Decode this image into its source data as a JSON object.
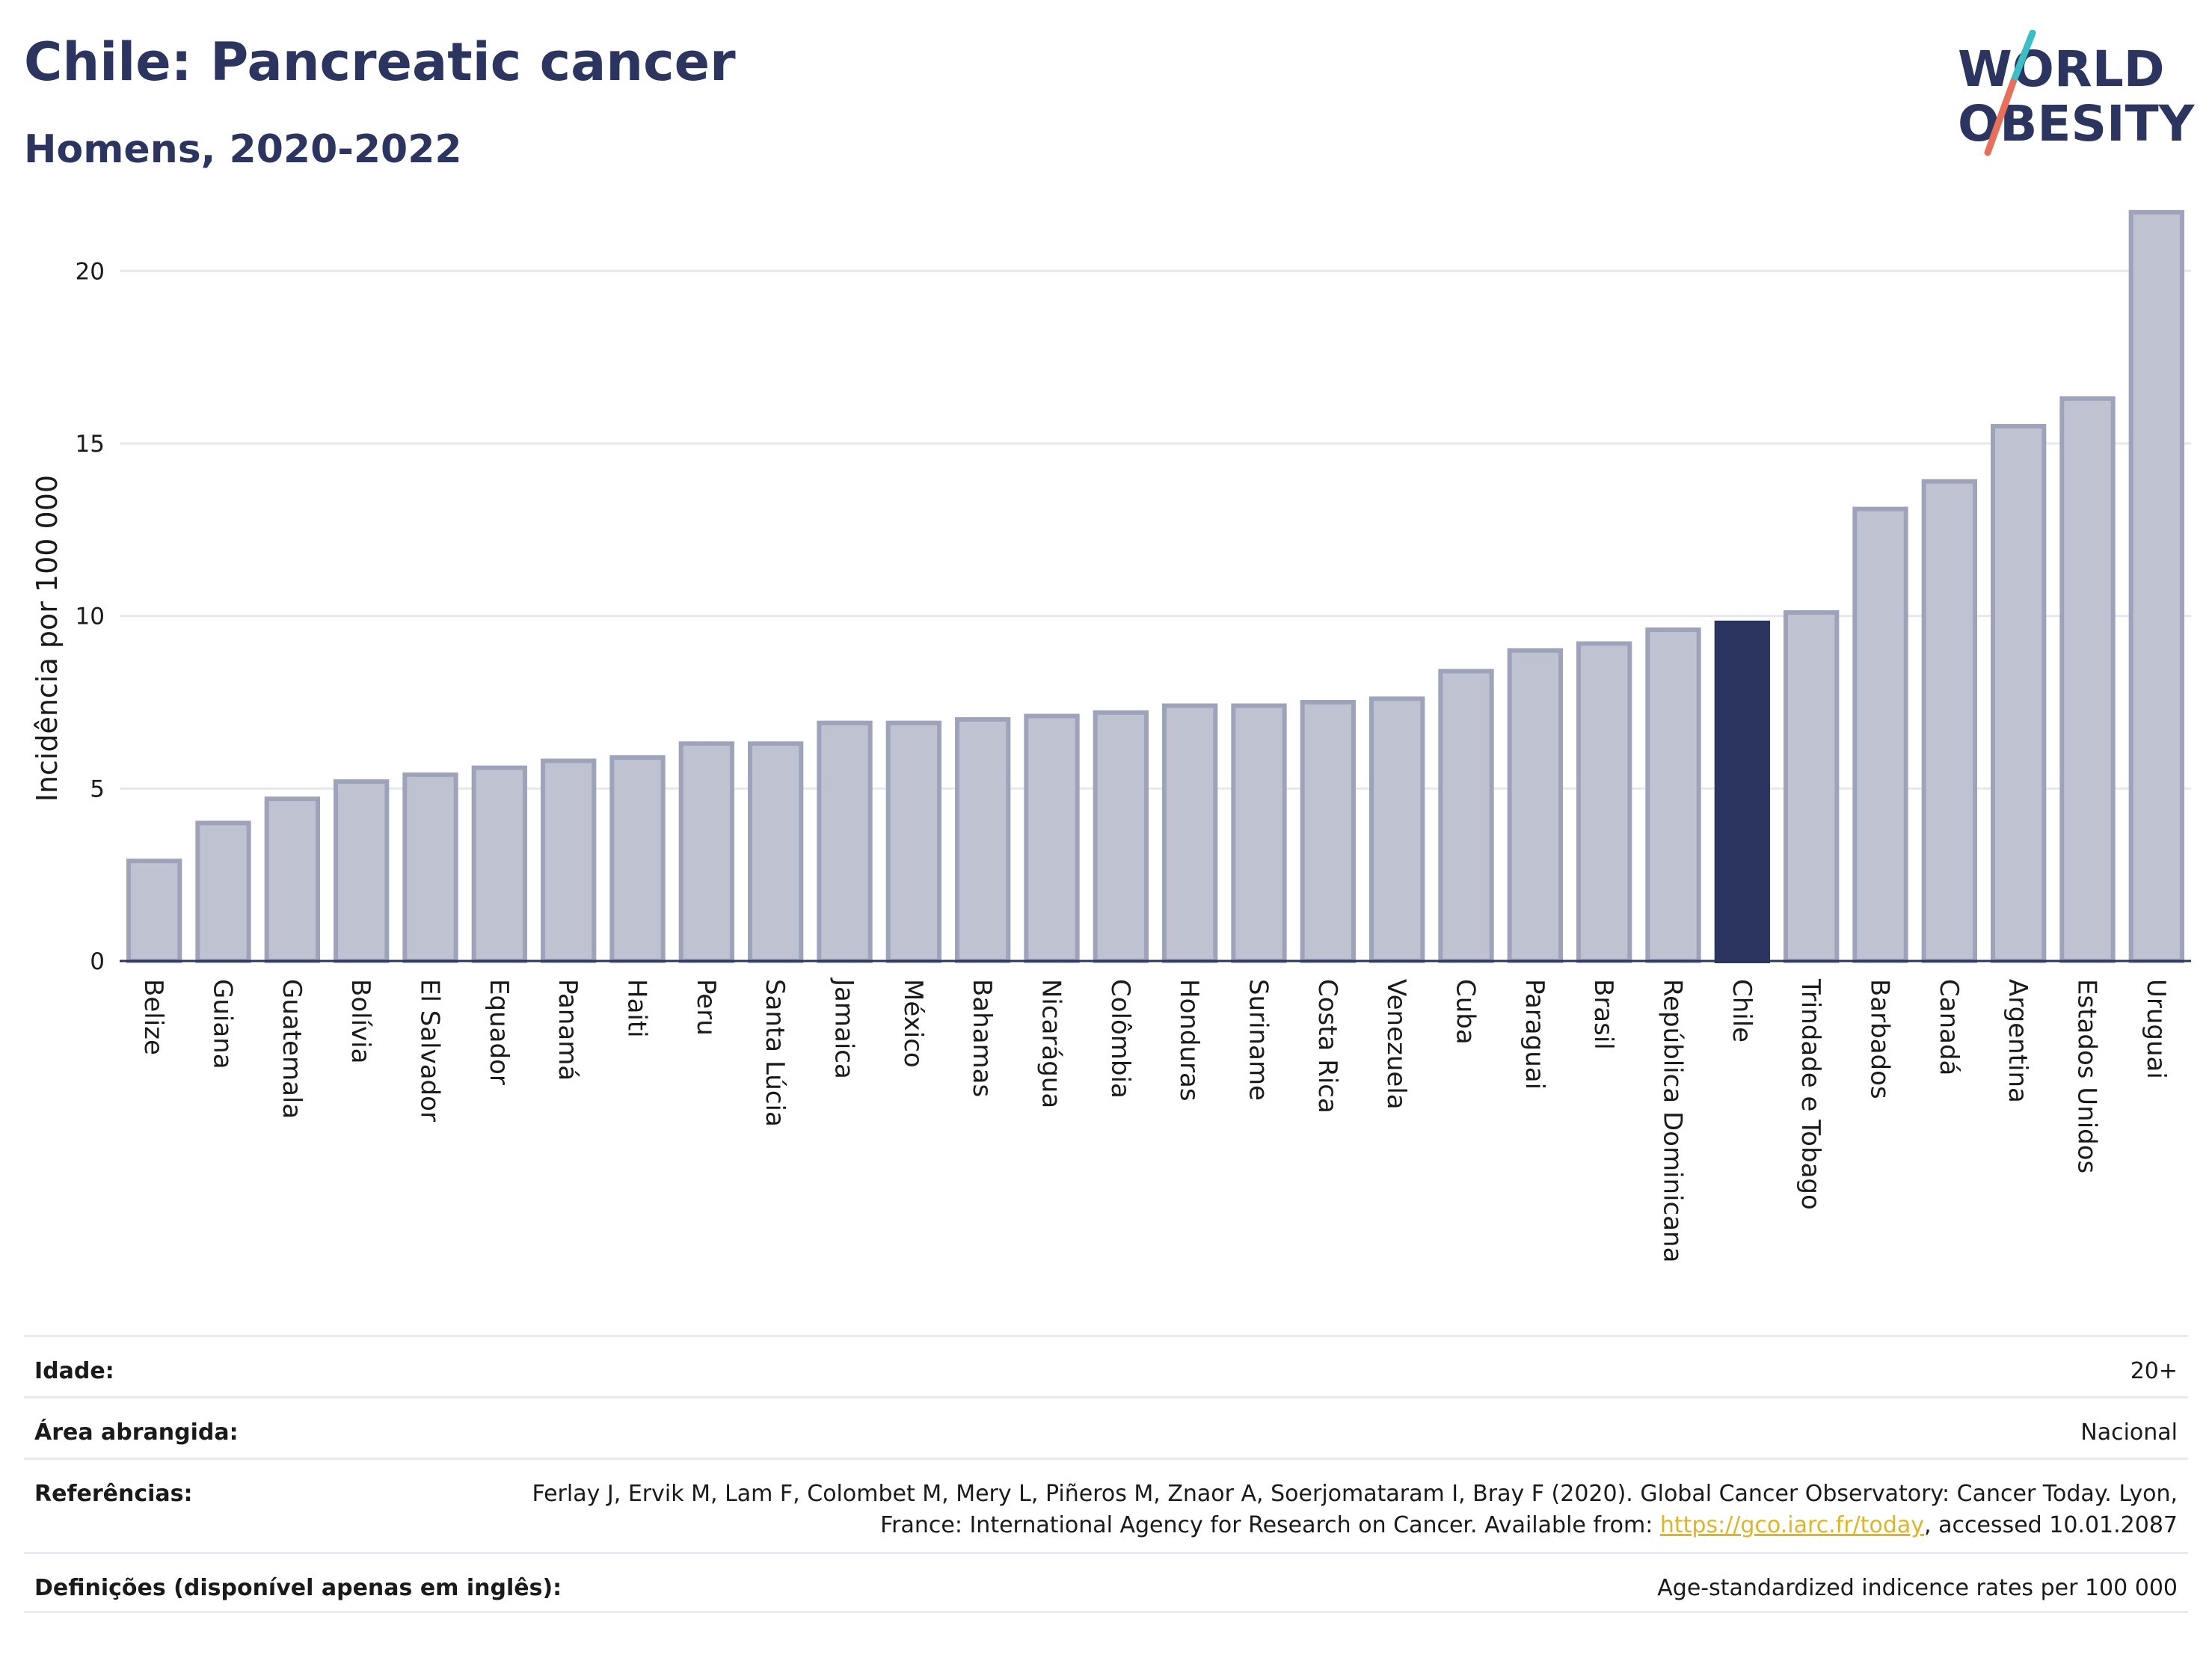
{
  "header": {
    "title": "Chile: Pancreatic cancer",
    "subtitle": "Homens, 2020-2022"
  },
  "logo": {
    "line1": "WORLD",
    "line2": "OBESITY",
    "colors": {
      "text": "#2b3560",
      "slash_top": "#3bbfc6",
      "slash_bottom": "#e8705a"
    }
  },
  "colors": {
    "bar": "#bfc3d1",
    "bar_border": "#9da3ba",
    "highlight": "#2b3560",
    "gridline": "#e6e8ec",
    "axis": "#2b3560"
  },
  "chart_data": {
    "type": "bar",
    "ylabel": "Incidência por 100 000",
    "ylim": [
      0,
      22
    ],
    "yticks": [
      0,
      5,
      10,
      15,
      20
    ],
    "grid": true,
    "highlight": "Chile",
    "categories": [
      "Belize",
      "Guiana",
      "Guatemala",
      "Bolívia",
      "El Salvador",
      "Equador",
      "Panamá",
      "Haiti",
      "Peru",
      "Santa Lúcia",
      "Jamaica",
      "México",
      "Bahamas",
      "Nicarágua",
      "Colômbia",
      "Honduras",
      "Suriname",
      "Costa Rica",
      "Venezuela",
      "Cuba",
      "Paraguai",
      "Brasil",
      "República Dominicana",
      "Chile",
      "Trindade e Tobago",
      "Barbados",
      "Canadá",
      "Argentina",
      "Estados Unidos",
      "Uruguai"
    ],
    "values": [
      2.9,
      4.0,
      4.7,
      5.2,
      5.4,
      5.6,
      5.8,
      5.9,
      6.3,
      6.3,
      6.9,
      6.9,
      7.0,
      7.1,
      7.2,
      7.4,
      7.4,
      7.5,
      7.6,
      8.4,
      9.0,
      9.2,
      9.6,
      9.8,
      10.1,
      13.1,
      13.9,
      15.5,
      16.3,
      21.7
    ]
  },
  "meta": {
    "age_label": "Idade:",
    "age_value": "20+",
    "area_label": "Área abrangida:",
    "area_value": "Nacional",
    "ref_label": "Referências:",
    "ref_text_1": "Ferlay J, Ervik M, Lam F, Colombet M, Mery L, Piñeros M, Znaor A, Soerjomataram I, Bray F (2020). Global Cancer Observatory: Cancer Today. Lyon, France: International Agency for Research on Cancer. Available from: ",
    "ref_link": "https://gco.iarc.fr/today",
    "ref_text_2": ", accessed 10.01.2087",
    "def_label": "Definições (disponível apenas em inglês):",
    "def_value": "Age-standardized indicence rates per 100 000"
  }
}
